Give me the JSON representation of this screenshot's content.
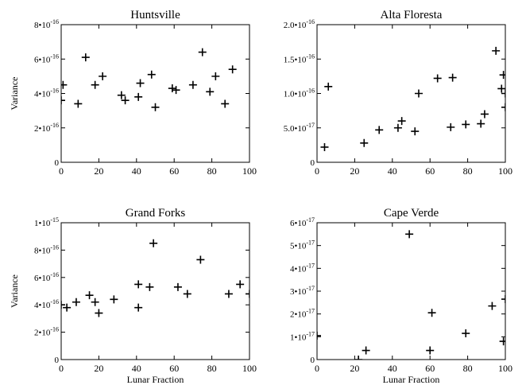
{
  "figure": {
    "background": "#ffffff",
    "ink": "#000000",
    "marker": "plus"
  },
  "chart_data": [
    {
      "type": "scatter",
      "title": "Huntsville",
      "xlabel": "",
      "ylabel": "Variance",
      "xlim": [
        0,
        100
      ],
      "ylim": [
        0,
        8e-16
      ],
      "xticks": [
        {
          "v": 0,
          "label": "0"
        },
        {
          "v": 20,
          "label": "20"
        },
        {
          "v": 40,
          "label": "40"
        },
        {
          "v": 60,
          "label": "60"
        },
        {
          "v": 80,
          "label": "80"
        },
        {
          "v": 100,
          "label": "100"
        }
      ],
      "yticks": [
        {
          "v": 0,
          "label": "0"
        },
        {
          "v": 2e-16,
          "label": "2•10",
          "exp": "-16"
        },
        {
          "v": 4e-16,
          "label": "4•10",
          "exp": "-16"
        },
        {
          "v": 6e-16,
          "label": "6•10",
          "exp": "-16"
        },
        {
          "v": 8e-16,
          "label": "8•10",
          "exp": "-16"
        }
      ],
      "x": [
        0,
        1,
        9,
        13,
        18,
        22,
        32,
        34,
        41,
        42,
        48,
        50,
        59,
        61,
        70,
        75,
        79,
        82,
        87,
        91
      ],
      "y": [
        3.6e-16,
        4.5e-16,
        3.4e-16,
        6.1e-16,
        4.5e-16,
        5e-16,
        3.9e-16,
        3.6e-16,
        3.8e-16,
        4.6e-16,
        5.1e-16,
        3.2e-16,
        4.3e-16,
        4.2e-16,
        4.5e-16,
        6.4e-16,
        4.1e-16,
        5e-16,
        3.4e-16,
        5.4e-16
      ]
    },
    {
      "type": "scatter",
      "title": "Alta Floresta",
      "xlabel": "",
      "ylabel": "",
      "xlim": [
        0,
        100
      ],
      "ylim": [
        0,
        2e-16
      ],
      "xticks": [
        {
          "v": 0,
          "label": "0"
        },
        {
          "v": 20,
          "label": "20"
        },
        {
          "v": 40,
          "label": "40"
        },
        {
          "v": 60,
          "label": "60"
        },
        {
          "v": 80,
          "label": "80"
        },
        {
          "v": 100,
          "label": "100"
        }
      ],
      "yticks": [
        {
          "v": 0,
          "label": "0"
        },
        {
          "v": 5e-17,
          "label": "5.0•10",
          "exp": "-17"
        },
        {
          "v": 1e-16,
          "label": "1.0•10",
          "exp": "-16"
        },
        {
          "v": 1.5e-16,
          "label": "1.5•10",
          "exp": "-16"
        },
        {
          "v": 2e-16,
          "label": "2.0•10",
          "exp": "-16"
        }
      ],
      "x": [
        4,
        6,
        25,
        33,
        43,
        45,
        52,
        54,
        64,
        72,
        71,
        79,
        87,
        89,
        95,
        98,
        99,
        100,
        100
      ],
      "y": [
        2.2e-17,
        1.1e-16,
        2.8e-17,
        4.7e-17,
        5e-17,
        6e-17,
        4.5e-17,
        1e-16,
        1.22e-16,
        1.23e-16,
        5.1e-17,
        5.5e-17,
        5.6e-17,
        7e-17,
        1.62e-16,
        1.07e-16,
        1.27e-16,
        8e-17,
        1e-16
      ]
    },
    {
      "type": "scatter",
      "title": "Grand Forks",
      "xlabel": "Lunar Fraction",
      "ylabel": "Variance",
      "xlim": [
        0,
        100
      ],
      "ylim": [
        0,
        1e-15
      ],
      "xticks": [
        {
          "v": 0,
          "label": "0"
        },
        {
          "v": 20,
          "label": "20"
        },
        {
          "v": 40,
          "label": "40"
        },
        {
          "v": 60,
          "label": "60"
        },
        {
          "v": 80,
          "label": "80"
        },
        {
          "v": 100,
          "label": "100"
        }
      ],
      "yticks": [
        {
          "v": 0,
          "label": "0"
        },
        {
          "v": 2e-16,
          "label": "2•10",
          "exp": "-16"
        },
        {
          "v": 4e-16,
          "label": "4•10",
          "exp": "-16"
        },
        {
          "v": 6e-16,
          "label": "6•10",
          "exp": "-16"
        },
        {
          "v": 8e-16,
          "label": "8•10",
          "exp": "-16"
        },
        {
          "v": 1e-15,
          "label": "1•10",
          "exp": "-15"
        }
      ],
      "x": [
        0,
        3,
        8,
        15,
        18,
        20,
        28,
        41,
        41,
        47,
        49,
        62,
        67,
        74,
        89,
        95,
        100
      ],
      "y": [
        4e-16,
        3.8e-16,
        4.2e-16,
        4.7e-16,
        4.2e-16,
        3.4e-16,
        4.4e-16,
        3.8e-16,
        5.5e-16,
        5.3e-16,
        8.5e-16,
        5.3e-16,
        4.8e-16,
        7.3e-16,
        4.8e-16,
        5.5e-16,
        4.8e-16
      ]
    },
    {
      "type": "scatter",
      "title": "Cape Verde",
      "xlabel": "Lunar Fraction",
      "ylabel": "",
      "xlim": [
        0,
        100
      ],
      "ylim": [
        0,
        6e-17
      ],
      "xticks": [
        {
          "v": 0,
          "label": "0"
        },
        {
          "v": 20,
          "label": "20"
        },
        {
          "v": 40,
          "label": "40"
        },
        {
          "v": 60,
          "label": "60"
        },
        {
          "v": 80,
          "label": "80"
        },
        {
          "v": 100,
          "label": "100"
        }
      ],
      "yticks": [
        {
          "v": 0,
          "label": "0"
        },
        {
          "v": 1e-17,
          "label": "1•10",
          "exp": "-17"
        },
        {
          "v": 2e-17,
          "label": "2•10",
          "exp": "-17"
        },
        {
          "v": 3e-17,
          "label": "3•10",
          "exp": "-17"
        },
        {
          "v": 4e-17,
          "label": "4•10",
          "exp": "-17"
        },
        {
          "v": 5e-17,
          "label": "5•10",
          "exp": "-17"
        },
        {
          "v": 6e-17,
          "label": "6•10",
          "exp": "-17"
        }
      ],
      "x": [
        0,
        22,
        26,
        49,
        60,
        61,
        79,
        93,
        99,
        100
      ],
      "y": [
        1.05e-17,
        0.0,
        4e-18,
        5.5e-17,
        4e-18,
        2.05e-17,
        1.15e-17,
        2.35e-17,
        8e-18,
        2.65e-17
      ]
    }
  ]
}
